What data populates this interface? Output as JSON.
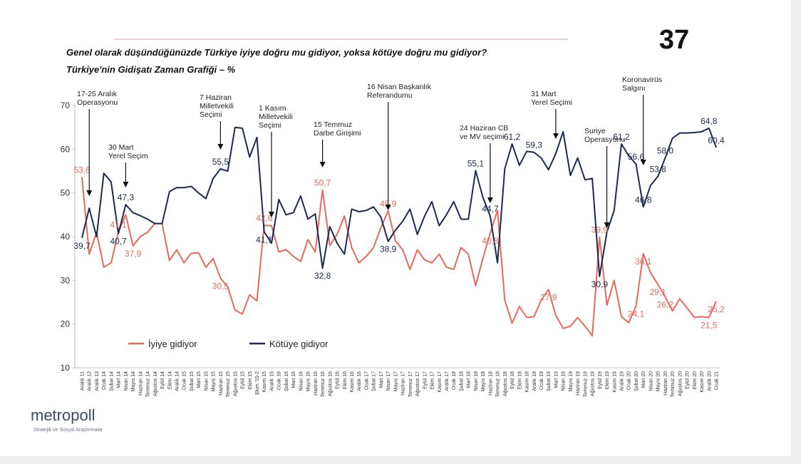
{
  "page_number": "37",
  "logo": {
    "name": "metropoll",
    "tagline": "Stratejik ve Sosyal Araştırmalar"
  },
  "chart_data": {
    "type": "line",
    "title": "Genel olarak düşündüğünüzde Türkiye iyiye doğru mu gidiyor, yoksa kötüye doğru mu gidiyor?",
    "subtitle": "Türkiye'nin Gidişatı Zaman Grafiği – %",
    "categories": [
      "Aralık 11",
      "Aralık 12",
      "Aralık 13",
      "Ocak 14",
      "Şubat 14",
      "Mart 14",
      "Nisan 14",
      "Mayıs 14",
      "Haziran 14",
      "Temmuz 14",
      "Ağustos 14",
      "Eylül 14",
      "Ekim 14",
      "Aralık 14",
      "Ocak 15",
      "Şubat 15",
      "Mart 15",
      "Nisan 15",
      "Mayıs 15",
      "Haziran 15",
      "Temmuz 15",
      "Ağustos 15",
      "Eylül 15",
      "Ekim 15",
      "Ekim '15-2",
      "Kasım 15",
      "Aralık 15",
      "Ocak 16",
      "Şubat 16",
      "Mart 16",
      "Nisan 16",
      "Mayıs 16",
      "Haziran 16",
      "Temmuz 16",
      "Ağustos 16",
      "Eylül 16",
      "Ekim 16",
      "Kasım 16",
      "Aralık 16",
      "Ocak 17",
      "Şubat 17",
      "Mart 17",
      "Nisan 17",
      "Mayıs 17",
      "Haziran 17",
      "Temmuz 17",
      "Ağustos 17",
      "Eylül 17",
      "Ekim 17",
      "Kasım 17",
      "Aralık 17",
      "Ocak 18",
      "Şubat 18",
      "Mart 18",
      "Nisan 18",
      "Mayıs 18",
      "Haziran 18",
      "Temmuz 18",
      "Ağustos 18",
      "Eylül 18",
      "Ekim 18",
      "Kasım 18",
      "Aralık 18",
      "Ocak 19",
      "Şubat 19",
      "Mart 19",
      "Nisan 19",
      "Mayıs 19",
      "Haziran 19",
      "Temmuz 19",
      "Ağustos 19",
      "Eylül 19",
      "Ekim 19",
      "Kasım 19",
      "Aralık 19",
      "Ocak 20",
      "Şubat 20",
      "Mart 20",
      "Nisan 20",
      "Mayıs 20",
      "Haziran 20",
      "Temmuz 20",
      "Ağustos 20",
      "Eylül 20",
      "Ekim 20",
      "Kasım 20",
      "Aralık 20",
      "Ocak 21"
    ],
    "series": [
      {
        "name": "İyiye gidiyor",
        "color": "#e8695c",
        "values": [
          53.6,
          36,
          41,
          33,
          34,
          41.1,
          45,
          37.9,
          40,
          41,
          43,
          43,
          34.5,
          37,
          34,
          36.2,
          36.3,
          33,
          35,
          30.5,
          28.5,
          23.2,
          22.3,
          26.7,
          25.3,
          42.6,
          42.5,
          36.5,
          37,
          35.5,
          34.3,
          39.3,
          36.5,
          50.7,
          38,
          40.5,
          44.7,
          37.5,
          34,
          35.5,
          37.5,
          42,
          45.9,
          39,
          37,
          32.5,
          37,
          34.7,
          34,
          36,
          33,
          32.5,
          37.5,
          36,
          28.8,
          35,
          40.8,
          46,
          25.5,
          20.2,
          24,
          21.5,
          21.7,
          25.5,
          27.9,
          22,
          19,
          19.5,
          21.5,
          19.5,
          17.3,
          39.9,
          24.3,
          30,
          21.7,
          20.3,
          24.1,
          36.1,
          31.7,
          29.1,
          26.2,
          23,
          25.8,
          23.7,
          21.5,
          21.7,
          21.5,
          25.2
        ],
        "value_labels": [
          "53,6",
          null,
          null,
          null,
          null,
          "41,1",
          null,
          "37,9",
          null,
          null,
          null,
          null,
          null,
          null,
          null,
          null,
          null,
          null,
          null,
          "30,5",
          null,
          null,
          null,
          null,
          null,
          "42,6",
          null,
          null,
          null,
          null,
          null,
          null,
          null,
          "50,7",
          null,
          null,
          null,
          null,
          null,
          null,
          null,
          null,
          "45,9",
          null,
          null,
          null,
          null,
          null,
          null,
          null,
          null,
          null,
          null,
          null,
          null,
          null,
          "40,8",
          null,
          null,
          null,
          null,
          null,
          null,
          null,
          "27,9",
          null,
          null,
          null,
          null,
          null,
          null,
          "39,9",
          null,
          null,
          null,
          null,
          "24,1",
          "36,1",
          null,
          "29,1",
          "26,2",
          null,
          null,
          null,
          null,
          null,
          "21,5",
          "25,2"
        ]
      },
      {
        "name": "Kötüye gidiyor",
        "color": "#1a2a50",
        "values": [
          39.7,
          46.5,
          40,
          54.5,
          52.5,
          40.7,
          47.3,
          45.5,
          44.8,
          44,
          43,
          43,
          50.3,
          51.2,
          51.2,
          51.5,
          50,
          48.7,
          53.3,
          55.5,
          55,
          65,
          64.8,
          58.2,
          62.7,
          41.1,
          38.5,
          48.5,
          45,
          45.5,
          49.3,
          44,
          45.2,
          32.8,
          42.3,
          38.5,
          36,
          46.3,
          45.7,
          46,
          46.8,
          44.5,
          38.9,
          41.5,
          43.5,
          46.3,
          40.5,
          44.7,
          48,
          42.5,
          45,
          48,
          44,
          44,
          55.1,
          49,
          44.7,
          34,
          55.5,
          61.2,
          56.3,
          59.5,
          59.3,
          58,
          55.3,
          59,
          64,
          54,
          58,
          53,
          53.3,
          30.9,
          41,
          46,
          61.2,
          58.5,
          56.6,
          46.8,
          51.7,
          53.8,
          58,
          62.5,
          63.7,
          63.7,
          63.8,
          64,
          64.8,
          60.4
        ],
        "value_labels": [
          "39,7",
          null,
          null,
          null,
          null,
          "40,7",
          "47,3",
          null,
          null,
          null,
          null,
          null,
          null,
          null,
          null,
          null,
          null,
          null,
          null,
          "55,5",
          null,
          null,
          null,
          null,
          null,
          "41,1",
          null,
          null,
          null,
          null,
          null,
          null,
          null,
          "32,8",
          null,
          null,
          null,
          null,
          null,
          null,
          null,
          null,
          "38,9",
          null,
          null,
          null,
          null,
          null,
          null,
          null,
          null,
          null,
          null,
          null,
          "55,1",
          null,
          "44,7",
          null,
          null,
          "61,2",
          null,
          null,
          "59,3",
          null,
          null,
          null,
          null,
          null,
          null,
          null,
          null,
          "30,9",
          null,
          null,
          "61,2",
          null,
          "56,6",
          "46,8",
          null,
          "53,8",
          "58,0",
          null,
          null,
          null,
          null,
          null,
          "64,8",
          "60,4"
        ]
      }
    ],
    "ylim": [
      10,
      70
    ],
    "yticks": [
      10,
      20,
      30,
      40,
      50,
      60,
      70
    ],
    "grid": false,
    "annotations": [
      {
        "lines": [
          "17-25 Aralık",
          "Operasyonu"
        ],
        "index": 1
      },
      {
        "lines": [
          "30 Mart",
          "Yerel Seçim"
        ],
        "index": 6
      },
      {
        "lines": [
          "7 Haziran",
          "Milletvekili",
          "Seçimi"
        ],
        "index": 19
      },
      {
        "lines": [
          "1 Kasım",
          "Milletvekili",
          "Seçimi"
        ],
        "index": 26
      },
      {
        "lines": [
          "15 Temmuz",
          "Darbe Girişimi"
        ],
        "index": 33
      },
      {
        "lines": [
          "16 Nisan Başkanlık",
          "Referandumu"
        ],
        "index": 42
      },
      {
        "lines": [
          "24 Haziran CB",
          "ve MV seçimi"
        ],
        "index": 56
      },
      {
        "lines": [
          "31 Mart",
          "Yerel Seçimi"
        ],
        "index": 65
      },
      {
        "lines": [
          "Suriye",
          "Operasyonu"
        ],
        "index": 72
      },
      {
        "lines": [
          "Koronavirüs",
          "Salgını"
        ],
        "index": 77
      }
    ]
  }
}
